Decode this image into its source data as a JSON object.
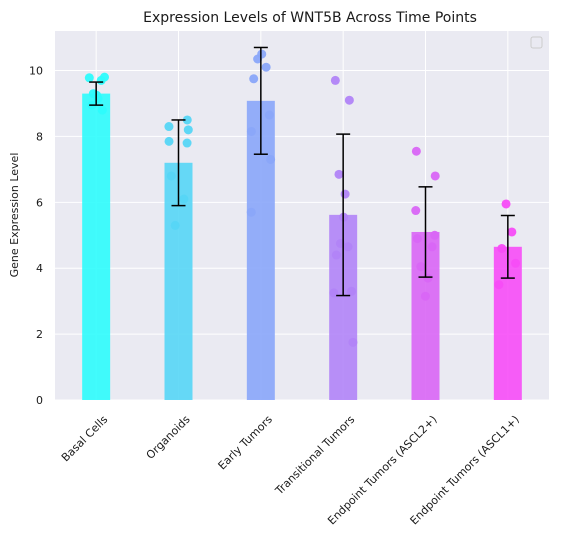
{
  "chart_data": {
    "type": "bar",
    "title": "Expression Levels of WNT5B Across Time Points",
    "xlabel": "",
    "ylabel": "Gene Expression Level",
    "ylim": [
      0,
      11.2
    ],
    "yticks": [
      "0",
      "2",
      "4",
      "6",
      "8",
      "10"
    ],
    "grid": true,
    "legend": "top-right (empty)",
    "categories": [
      "Basal Cells",
      "Organoids",
      "Early Tumors",
      "Transitional Tumors",
      "Endpoint Tumors (ASCL2+)",
      "Endpoint Tumors (ASCL1+)"
    ],
    "values": [
      9.3,
      7.2,
      9.08,
      5.62,
      5.1,
      4.65
    ],
    "errors": [
      0.35,
      1.3,
      1.62,
      2.45,
      1.37,
      0.95
    ],
    "colors": [
      "#2dfcfc",
      "#56d6f6",
      "#8aa6f9",
      "#b184f7",
      "#d966f5",
      "#f74cf7"
    ],
    "points": [
      [
        9.8,
        9.78,
        9.7,
        9.3,
        9.25,
        9.15,
        8.95,
        8.8
      ],
      [
        8.5,
        8.3,
        8.2,
        7.85,
        7.8,
        6.8,
        6.1,
        5.3
      ],
      [
        10.5,
        10.35,
        10.1,
        9.75,
        8.65,
        8.15,
        7.3,
        5.7
      ],
      [
        9.7,
        9.1,
        6.85,
        6.25,
        5.55,
        4.75,
        4.65,
        4.4,
        3.3,
        3.25,
        1.75
      ],
      [
        7.55,
        6.8,
        5.75,
        5.0,
        4.9,
        4.65,
        4.05,
        3.7,
        3.15
      ],
      [
        5.95,
        5.1,
        4.6,
        4.15,
        3.5
      ]
    ]
  }
}
